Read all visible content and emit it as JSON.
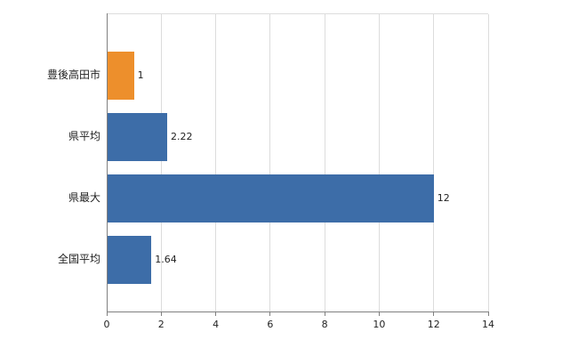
{
  "chart_data": {
    "type": "bar",
    "orientation": "horizontal",
    "title": "",
    "xlabel": "",
    "ylabel": "",
    "categories": [
      "豊後高田市",
      "県平均",
      "県最大",
      "全国平均"
    ],
    "values": [
      1,
      2.22,
      12,
      1.64
    ],
    "value_labels": [
      "1",
      "2.22",
      "12",
      "1.64"
    ],
    "bar_colors": [
      "#ED8F2C",
      "#3D6DA8",
      "#3D6DA8",
      "#3D6DA8"
    ],
    "xlim": [
      0,
      14
    ],
    "xticks": [
      0,
      2,
      4,
      6,
      8,
      10,
      12,
      14
    ],
    "grid": true,
    "legend": false,
    "colors": {
      "highlight_bar": "#ED8F2C",
      "default_bar": "#3D6DA8",
      "gridline": "#dcdcdc",
      "axis": "#808080",
      "text": "#222222",
      "background": "#ffffff"
    }
  }
}
